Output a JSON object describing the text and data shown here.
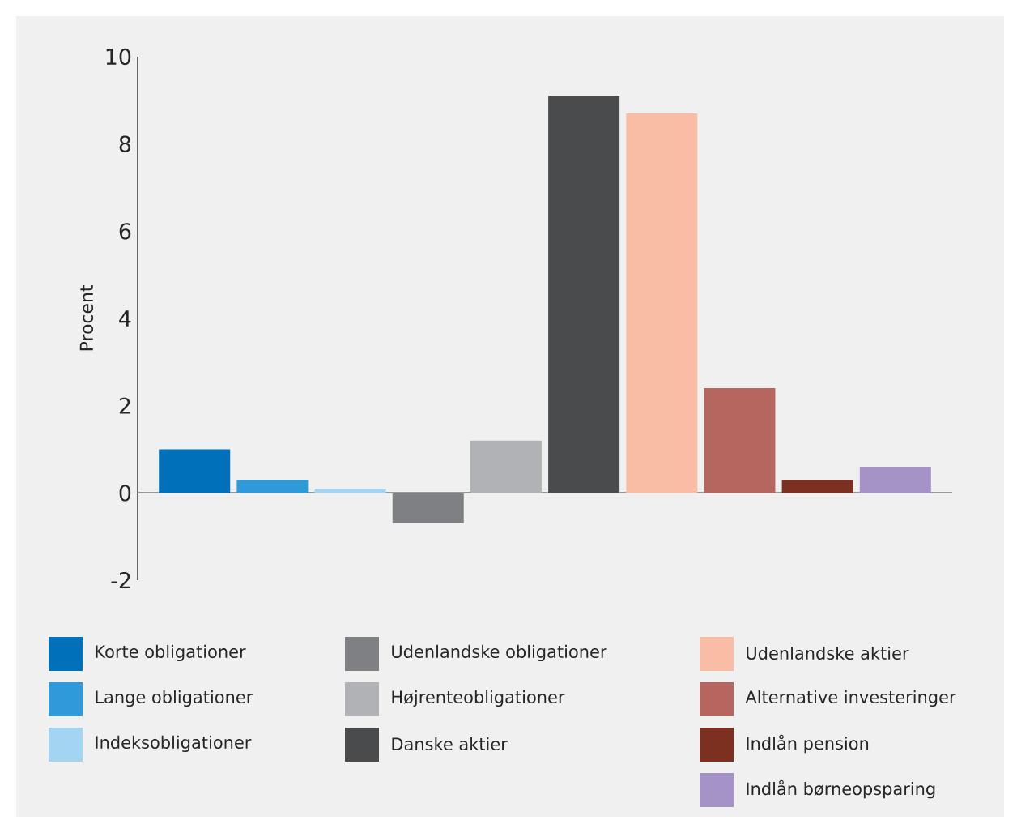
{
  "chart_data": {
    "type": "bar",
    "ylabel": "Procent",
    "categories": [
      null,
      null,
      null,
      null,
      null,
      null,
      null,
      null,
      null,
      null
    ],
    "series": [
      {
        "name": "Korte obligationer",
        "color": "#0070ba",
        "values": [
          1.0,
          null,
          null,
          null,
          null,
          null,
          null,
          null,
          null,
          null
        ]
      },
      {
        "name": "Lange obligationer",
        "color": "#2e9ad8",
        "values": [
          null,
          0.3,
          null,
          null,
          null,
          null,
          null,
          null,
          null,
          null
        ]
      },
      {
        "name": "Indeksobligationer",
        "color": "#a3d4f2",
        "values": [
          null,
          null,
          0.1,
          null,
          null,
          null,
          null,
          null,
          null,
          null
        ]
      },
      {
        "name": "Udenlandske obligationer",
        "color": "#7f8083",
        "values": [
          null,
          null,
          null,
          -0.7,
          null,
          null,
          null,
          null,
          null,
          null
        ]
      },
      {
        "name": "Højrenteobligationer",
        "color": "#b1b2b5",
        "values": [
          null,
          null,
          null,
          null,
          1.2,
          null,
          null,
          null,
          null,
          null
        ]
      },
      {
        "name": "Danske aktier",
        "color": "#4a4b4d",
        "values": [
          null,
          null,
          null,
          null,
          null,
          9.1,
          null,
          null,
          null,
          null
        ]
      },
      {
        "name": "Udenlandske aktier",
        "color": "#f9bda6",
        "values": [
          null,
          null,
          null,
          null,
          null,
          null,
          8.7,
          null,
          null,
          null
        ]
      },
      {
        "name": "Alternative investeringer",
        "color": "#b5665f",
        "values": [
          null,
          null,
          null,
          null,
          null,
          null,
          null,
          2.4,
          null,
          null
        ]
      },
      {
        "name": "Indlån pension",
        "color": "#7b3020",
        "values": [
          null,
          null,
          null,
          null,
          null,
          null,
          null,
          null,
          0.3,
          null
        ]
      },
      {
        "name": "Indlån børneopsparing",
        "color": "#a593c8",
        "values": [
          null,
          null,
          null,
          null,
          null,
          null,
          null,
          null,
          null,
          0.6
        ]
      }
    ],
    "ylim": [
      -2,
      10
    ],
    "yticks": [
      -2,
      0,
      2,
      4,
      6,
      8,
      10
    ],
    "legend": "bottom"
  }
}
